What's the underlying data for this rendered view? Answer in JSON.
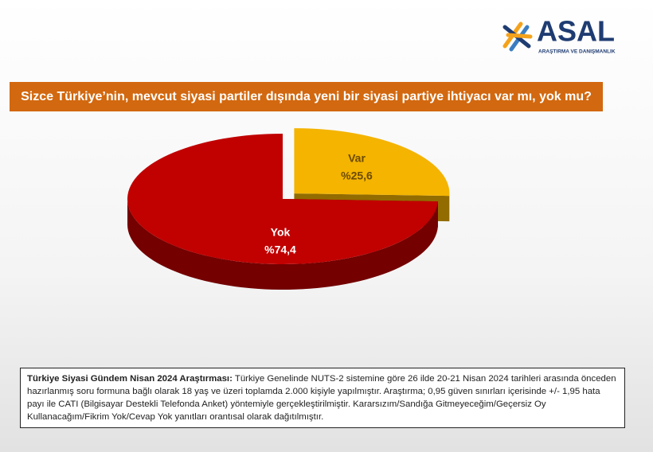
{
  "logo": {
    "name": "ASAL",
    "tagline": "ARAŞTIRMA VE DANIŞMANLIK"
  },
  "chart_data": {
    "type": "pie",
    "title": "Sizce Türkiye’nin, mevcut siyasi partiler dışında yeni bir siyasi partiye ihtiyacı var mı, yok mu?",
    "categories": [
      "Var",
      "Yok"
    ],
    "values": [
      25.6,
      74.4
    ],
    "value_labels": [
      "%25,6",
      "%74,4"
    ],
    "colors": [
      "#f4b400",
      "#c10000"
    ]
  },
  "note": {
    "lead": "Türkiye Siyasi Gündem Nisan 2024 Araştırması:",
    "text": "Türkiye Genelinde NUTS-2 sistemine göre 26 ilde 20-21 Nisan 2024 tarihleri arasında önceden hazırlanmış soru formuna bağlı olarak 18 yaş ve üzeri toplamda 2.000 kişiyle yapılmıştır. Araştırma; 0,95 güven sınırları içerisinde +/- 1,95 hata payı ile CATI (Bilgisayar Destekli Telefonda Anket) yöntemiyle gerçekleştirilmiştir. Kararsızım/Sandığa Gitmeyeceğim/Geçersiz Oy Kullanacağım/Fikrim Yok/Cevap Yok yanıtları orantısal olarak dağıtılmıştır."
  }
}
